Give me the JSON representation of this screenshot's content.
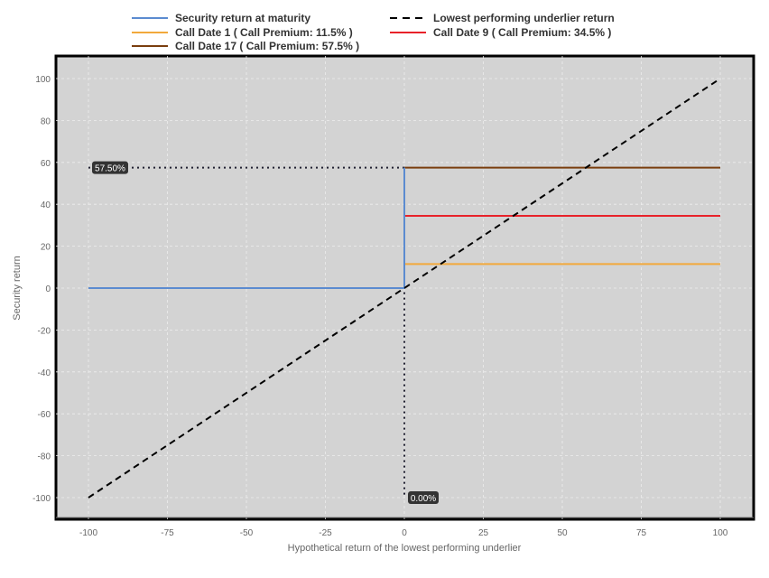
{
  "chart_data": {
    "type": "line",
    "title": "",
    "xlabel": "Hypothetical return of the lowest performing underlier",
    "ylabel": "Security return",
    "xlim": [
      -110,
      110
    ],
    "ylim": [
      -110,
      110
    ],
    "xticks": [
      -100,
      -75,
      -50,
      -25,
      0,
      25,
      50,
      75,
      100
    ],
    "yticks": [
      100,
      80,
      60,
      40,
      20,
      0,
      -20,
      -40,
      -60,
      -80,
      -100
    ],
    "grid": true,
    "legend_position": "top",
    "series": [
      {
        "name": "Security return at maturity",
        "color": "#5b8bd0",
        "dash": false,
        "x": [
          -100,
          0,
          0
        ],
        "y": [
          0,
          0,
          57.5
        ]
      },
      {
        "name": "Lowest performing underlier return",
        "color": "#000000",
        "dash": true,
        "x": [
          -100,
          100
        ],
        "y": [
          -100,
          100
        ]
      },
      {
        "name": "Call Date 1 ( Call Premium: 11.5% )",
        "color": "#f2a93b",
        "dash": false,
        "x": [
          0,
          100
        ],
        "y": [
          11.5,
          11.5
        ]
      },
      {
        "name": "Call Date 9 ( Call Premium: 34.5% )",
        "color": "#e8222a",
        "dash": false,
        "x": [
          0,
          100
        ],
        "y": [
          34.5,
          34.5
        ]
      },
      {
        "name": "Call Date 17 ( Call Premium: 57.5% )",
        "color": "#7a3e0e",
        "dash": false,
        "x": [
          0,
          100
        ],
        "y": [
          57.5,
          57.5
        ]
      }
    ],
    "annotations": [
      {
        "label": "57.50%",
        "axis": "y",
        "value": 57.5
      },
      {
        "label": "0.00%",
        "axis": "x",
        "value": 0
      }
    ]
  }
}
